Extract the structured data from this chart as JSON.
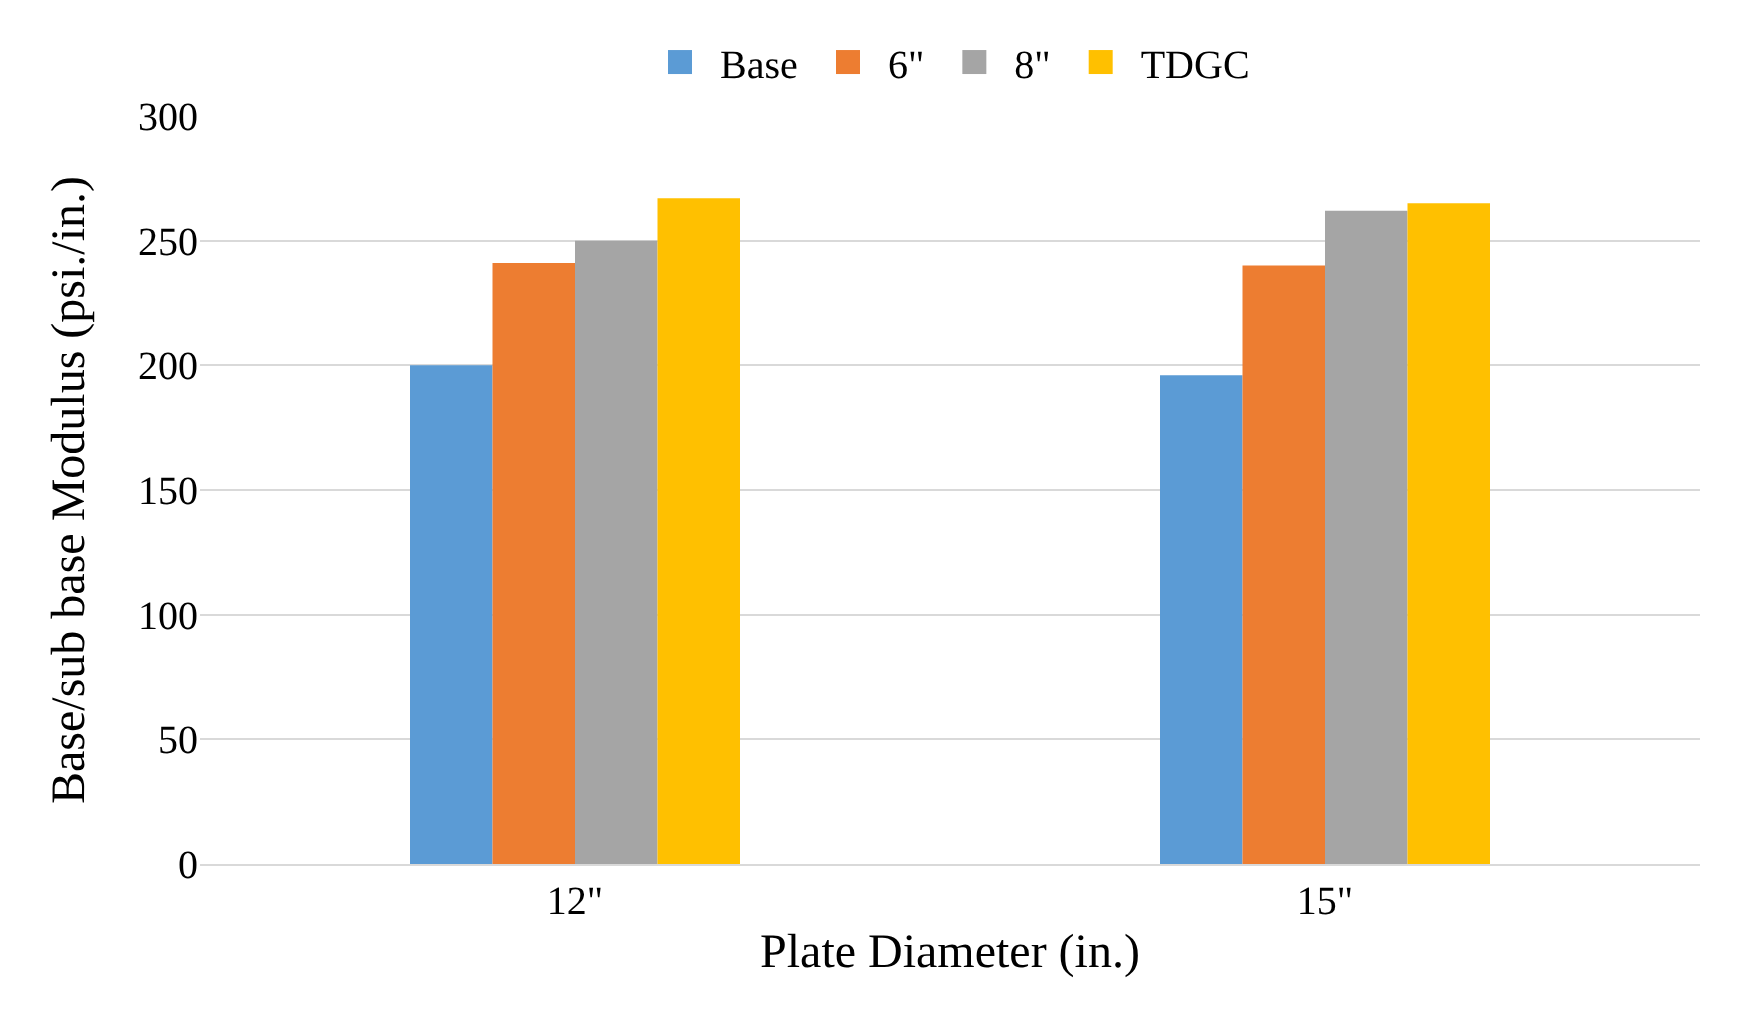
{
  "chart_data": {
    "type": "bar",
    "xlabel": "Plate Diameter (in.)",
    "ylabel": "Base/sub base Modulus (psi./in.)",
    "categories": [
      "12\"",
      "15\""
    ],
    "series": [
      {
        "name": "Base",
        "color": "#5b9bd5",
        "values": [
          200,
          196
        ]
      },
      {
        "name": "6\"",
        "color": "#ed7d31",
        "values": [
          241,
          240
        ]
      },
      {
        "name": "8\"",
        "color": "#a5a5a5",
        "values": [
          250,
          262
        ]
      },
      {
        "name": "TDGC",
        "color": "#ffc000",
        "values": [
          267,
          265
        ]
      }
    ],
    "ylim": [
      0,
      300
    ],
    "yticks": [
      0,
      50,
      100,
      150,
      200,
      250,
      300
    ],
    "grid": "y",
    "legend": "top"
  }
}
